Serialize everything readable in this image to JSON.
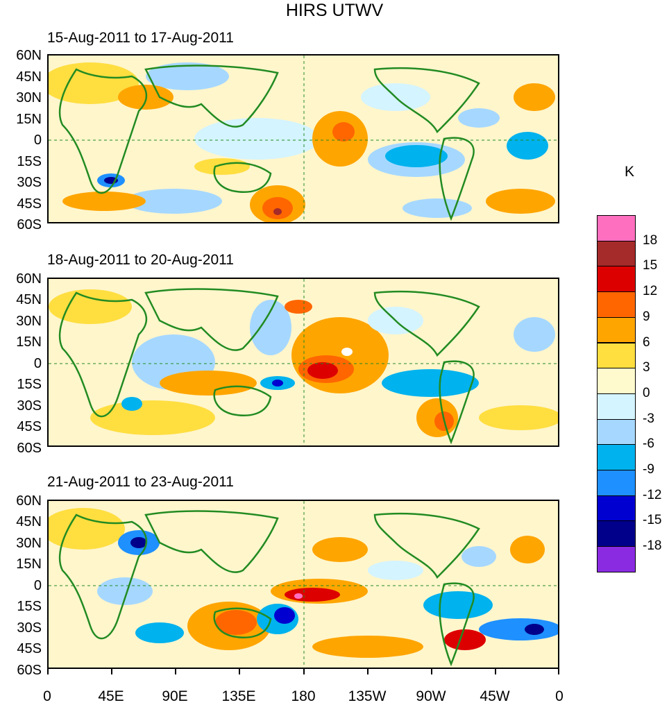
{
  "title": "HIRS UTWV",
  "panels": [
    {
      "period": "15-Aug-2011 to 17-Aug-2011"
    },
    {
      "period": "18-Aug-2011 to 20-Aug-2011"
    },
    {
      "period": "21-Aug-2011 to 23-Aug-2011"
    }
  ],
  "lat_labels": [
    "60N",
    "45N",
    "30N",
    "15N",
    "0",
    "15S",
    "30S",
    "45S",
    "60S"
  ],
  "lon_labels": [
    "0",
    "45E",
    "90E",
    "135E",
    "180",
    "135W",
    "90W",
    "45W",
    "0"
  ],
  "colorbar": {
    "unit": "K",
    "labels": [
      "18",
      "15",
      "12",
      "9",
      "6",
      "3",
      "0",
      "-3",
      "-6",
      "-9",
      "-12",
      "-15",
      "-18"
    ],
    "colors": [
      "#ff6fc0",
      "#a52a2a",
      "#dd0000",
      "#ff6600",
      "#ffa500",
      "#ffde40",
      "#fffacd",
      "#d4f4ff",
      "#a6d8ff",
      "#00b2ee",
      "#1e90ff",
      "#0000d0",
      "#00008b",
      "#8a2be2"
    ]
  }
}
